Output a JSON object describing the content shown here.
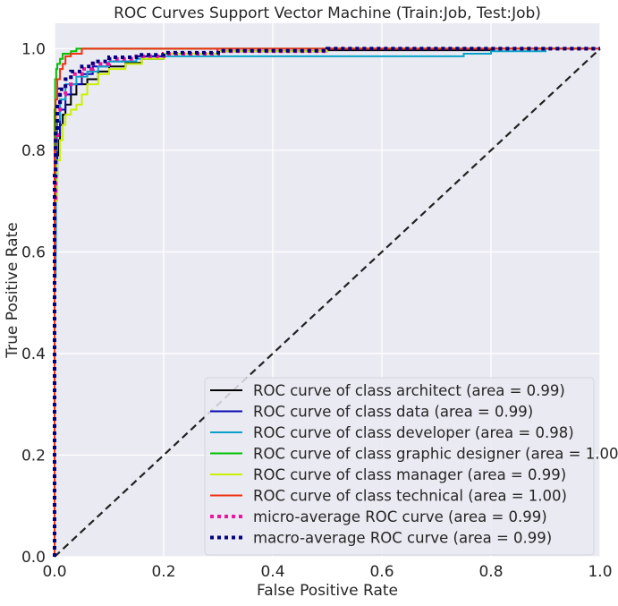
{
  "chart_data": {
    "type": "line",
    "title": "ROC Curves Support Vector Machine (Train:Job, Test:Job)",
    "xlabel": "False Positive Rate",
    "ylabel": "True Positive Rate",
    "xlim": [
      0.0,
      1.0
    ],
    "ylim": [
      0.0,
      1.05
    ],
    "x_ticks": [
      "0.0",
      "0.2",
      "0.4",
      "0.6",
      "0.8",
      "1.0"
    ],
    "y_ticks": [
      "0.0",
      "0.2",
      "0.4",
      "0.6",
      "0.8",
      "1.0"
    ],
    "grid": true,
    "legend_position": "lower-right",
    "series": [
      {
        "name": "ROC curve of class architect (area = 0.99)",
        "color": "#000000",
        "style": "solid",
        "x": [
          0,
          0.002,
          0.003,
          0.005,
          0.007,
          0.01,
          0.015,
          0.02,
          0.03,
          0.04,
          0.06,
          0.08,
          0.1,
          0.13,
          0.16,
          0.2,
          0.3,
          0.5,
          0.8,
          1.0
        ],
        "y": [
          0,
          0.64,
          0.72,
          0.75,
          0.79,
          0.82,
          0.85,
          0.87,
          0.89,
          0.91,
          0.93,
          0.94,
          0.955,
          0.965,
          0.972,
          0.98,
          0.99,
          0.995,
          0.997,
          1.0
        ]
      },
      {
        "name": "ROC curve of class data (area = 0.99)",
        "color": "#0a0ab4",
        "style": "solid",
        "x": [
          0,
          0.002,
          0.005,
          0.01,
          0.02,
          0.03,
          0.05,
          0.07,
          0.1,
          0.15,
          0.2,
          0.3,
          0.5,
          1.0
        ],
        "y": [
          0,
          0.6,
          0.75,
          0.83,
          0.88,
          0.91,
          0.93,
          0.95,
          0.965,
          0.975,
          0.985,
          0.99,
          0.995,
          1.0
        ]
      },
      {
        "name": "ROC curve of class developer (area = 0.98)",
        "color": "#0aa0c8",
        "style": "solid",
        "x": [
          0,
          0.002,
          0.005,
          0.01,
          0.02,
          0.04,
          0.06,
          0.08,
          0.1,
          0.15,
          0.2,
          0.3,
          0.5,
          0.75,
          0.8,
          0.9,
          1.0
        ],
        "y": [
          0,
          0.55,
          0.8,
          0.86,
          0.9,
          0.93,
          0.945,
          0.955,
          0.965,
          0.975,
          0.98,
          0.985,
          0.985,
          0.985,
          0.99,
          0.995,
          1.0
        ]
      },
      {
        "name": "ROC curve of class graphic designer (area = 1.00)",
        "color": "#00c000",
        "style": "solid",
        "x": [
          0,
          0.001,
          0.003,
          0.005,
          0.01,
          0.015,
          0.02,
          0.03,
          0.04,
          0.06,
          1.0
        ],
        "y": [
          0,
          0.88,
          0.94,
          0.96,
          0.97,
          0.98,
          0.99,
          0.99,
          0.995,
          1.0,
          1.0
        ]
      },
      {
        "name": "ROC curve of class manager (area = 0.99)",
        "color": "#ccf000",
        "style": "solid",
        "x": [
          0,
          0.005,
          0.01,
          0.015,
          0.02,
          0.03,
          0.04,
          0.05,
          0.06,
          0.08,
          0.1,
          0.13,
          0.16,
          0.2,
          0.3,
          0.5,
          1.0
        ],
        "y": [
          0,
          0.7,
          0.78,
          0.82,
          0.85,
          0.87,
          0.88,
          0.89,
          0.91,
          0.93,
          0.95,
          0.96,
          0.97,
          0.98,
          0.99,
          0.995,
          1.0
        ]
      },
      {
        "name": "ROC curve of class technical (area = 1.00)",
        "color": "#f03010",
        "style": "solid",
        "x": [
          0,
          0.002,
          0.005,
          0.01,
          0.015,
          0.02,
          0.03,
          0.05,
          0.07,
          0.1,
          0.2,
          0.5,
          1.0
        ],
        "y": [
          0,
          0.8,
          0.9,
          0.94,
          0.96,
          0.97,
          0.985,
          0.99,
          1.0,
          1.0,
          1.0,
          1.0,
          1.0
        ]
      },
      {
        "name": "micro-average ROC curve (area = 0.99)",
        "color": "#f0149a",
        "style": "dotted",
        "x": [
          0,
          0.002,
          0.005,
          0.01,
          0.02,
          0.03,
          0.05,
          0.07,
          0.1,
          0.15,
          0.2,
          0.3,
          0.5,
          1.0
        ],
        "y": [
          0,
          0.7,
          0.82,
          0.88,
          0.91,
          0.93,
          0.95,
          0.96,
          0.97,
          0.98,
          0.985,
          0.99,
          0.995,
          1.0
        ]
      },
      {
        "name": "macro-average ROC curve (area = 0.99)",
        "color": "#000080",
        "style": "dotted",
        "x": [
          0,
          0.002,
          0.005,
          0.01,
          0.02,
          0.03,
          0.05,
          0.07,
          0.1,
          0.15,
          0.2,
          0.3,
          0.5,
          1.0
        ],
        "y": [
          0,
          0.75,
          0.84,
          0.89,
          0.92,
          0.94,
          0.955,
          0.965,
          0.975,
          0.983,
          0.988,
          0.992,
          0.996,
          1.0
        ]
      }
    ],
    "reference_line": {
      "x": [
        0,
        1
      ],
      "y": [
        0,
        1
      ],
      "color": "#222222",
      "style": "dashed"
    }
  }
}
